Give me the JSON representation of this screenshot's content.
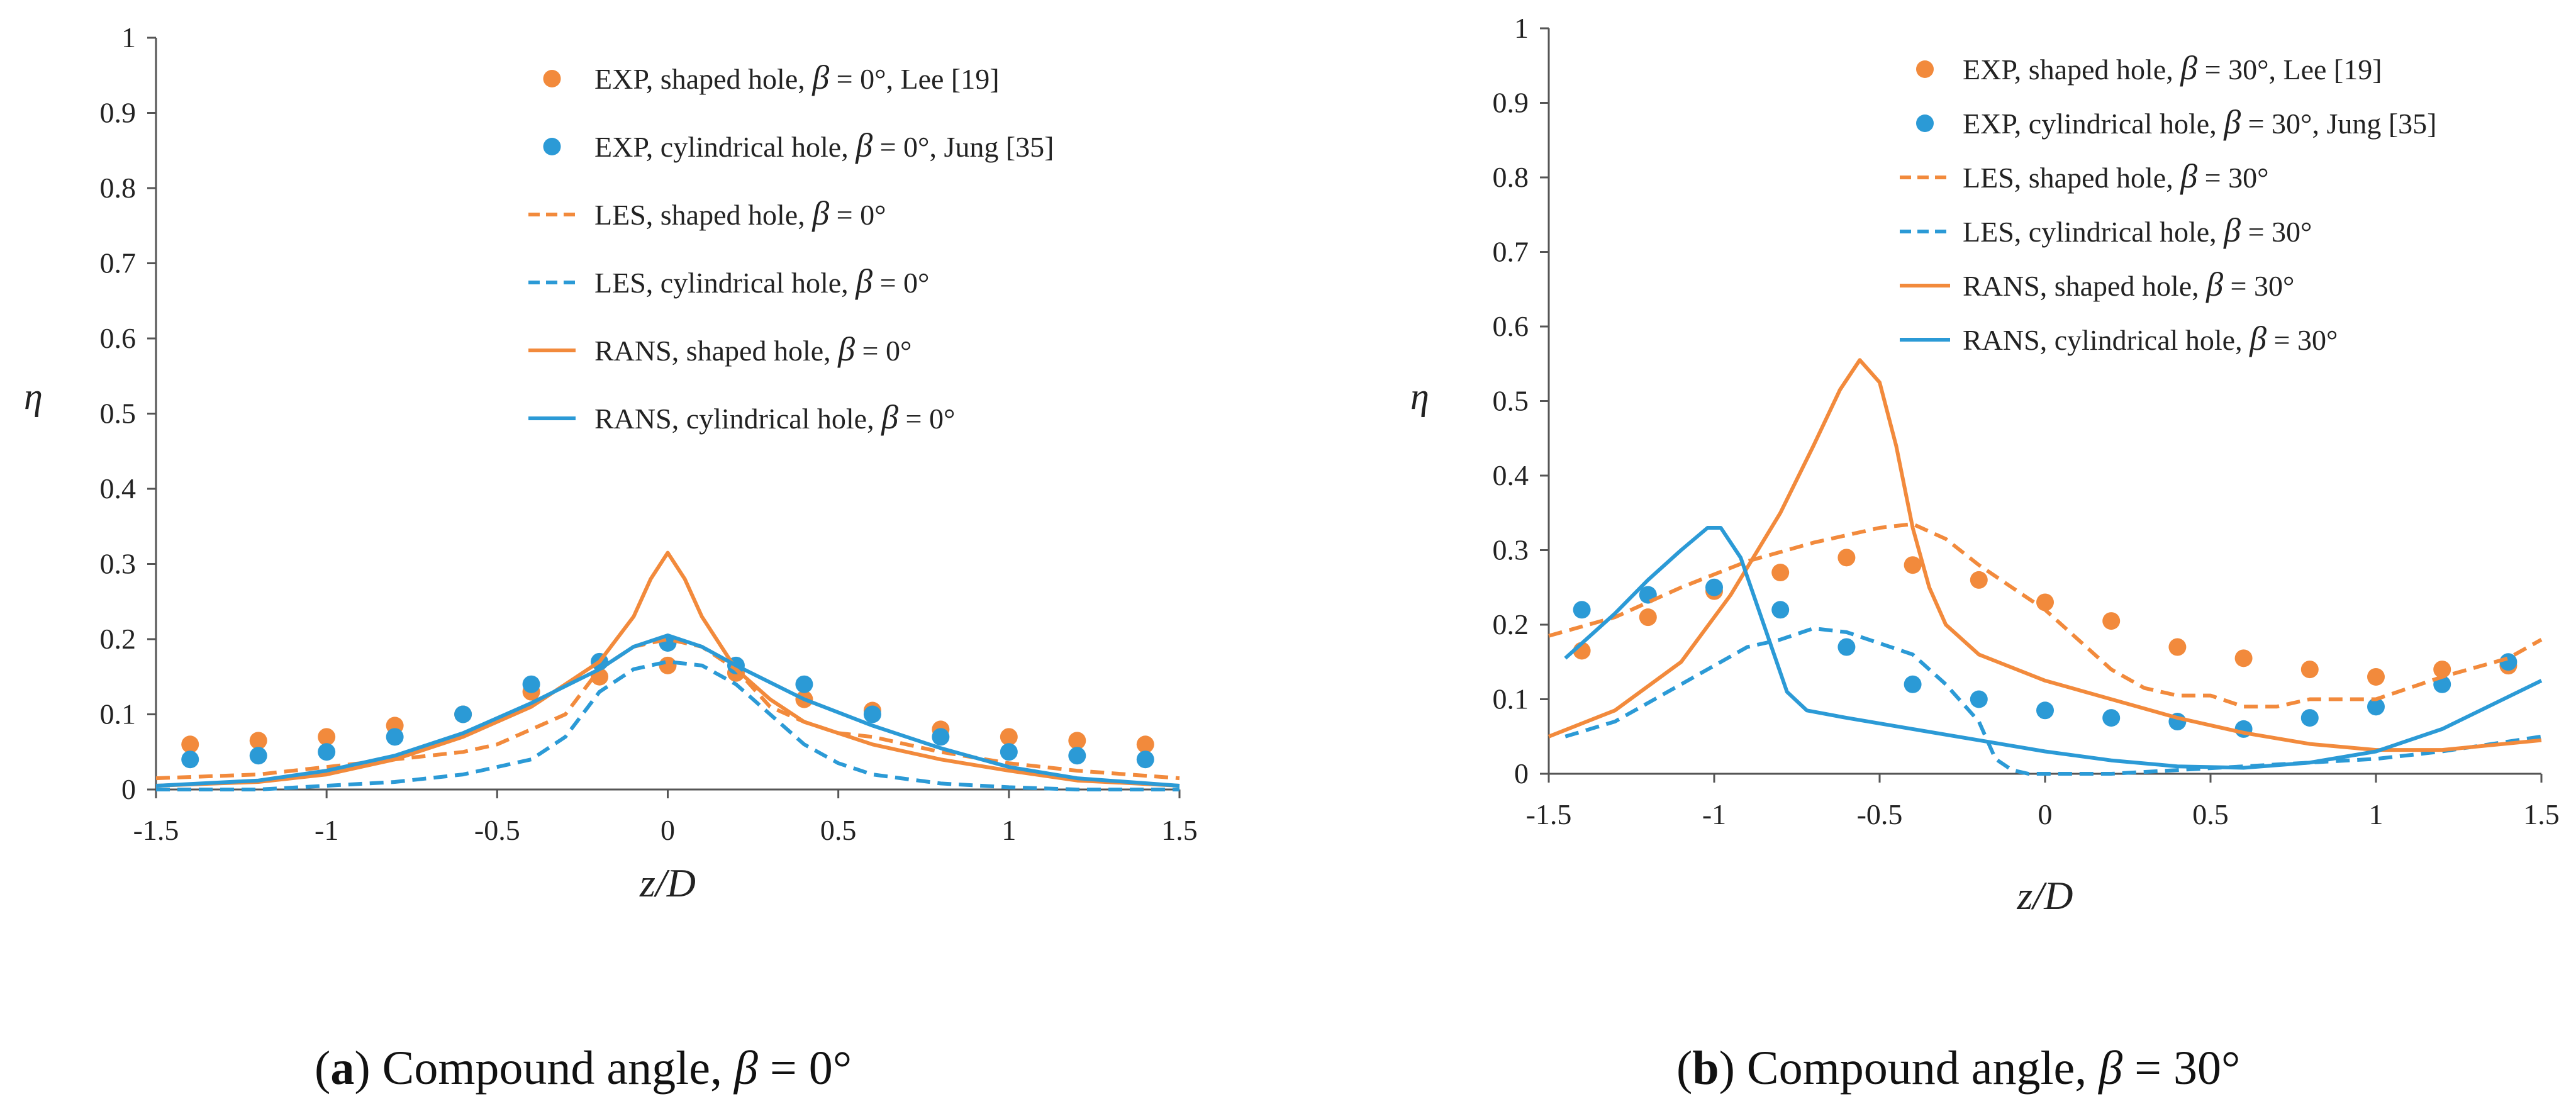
{
  "captions": [
    {
      "letter": "a",
      "text": "Compound angle, ",
      "sym": "β",
      "value": " = 0°"
    },
    {
      "letter": "b",
      "text": "Compound angle, ",
      "sym": "β",
      "value": " = 30°"
    }
  ],
  "chart_data": [
    {
      "type": "line",
      "title": "",
      "xlabel": "z/D",
      "ylabel": "η",
      "xlim": [
        -1.5,
        1.5
      ],
      "ylim": [
        0,
        1
      ],
      "xticks": [
        -1.5,
        -1,
        -0.5,
        0,
        0.5,
        1,
        1.5
      ],
      "xtick_labels": [
        "-1.5",
        "-1",
        "-0.5",
        "0",
        "0.5",
        "1",
        "1.5"
      ],
      "yticks": [
        0,
        0.1,
        0.2,
        0.3,
        0.4,
        0.5,
        0.6,
        0.7,
        0.8,
        0.9,
        1
      ],
      "ytick_labels": [
        "0",
        "0.1",
        "0.2",
        "0.3",
        "0.4",
        "0.5",
        "0.6",
        "0.7",
        "0.8",
        "0.9",
        "1"
      ],
      "legend_position": "top-right",
      "series": [
        {
          "name": "EXP, shaped hole, β = 0°, Lee [19]",
          "label_pre": "EXP, shaped hole, ",
          "label_post": " = 0°, Lee [19]",
          "style": "marker",
          "color": "#F28A3C",
          "x": [
            -1.4,
            -1.2,
            -1.0,
            -0.8,
            -0.6,
            -0.4,
            -0.2,
            0,
            0.2,
            0.4,
            0.6,
            0.8,
            1.0,
            1.2,
            1.4
          ],
          "y": [
            0.06,
            0.065,
            0.07,
            0.085,
            0.1,
            0.13,
            0.15,
            0.165,
            0.155,
            0.12,
            0.105,
            0.08,
            0.07,
            0.065,
            0.06
          ]
        },
        {
          "name": "EXP, cylindrical hole, β = 0°, Jung [35]",
          "label_pre": "EXP, cylindrical hole, ",
          "label_post": " = 0°, Jung [35]",
          "style": "marker",
          "color": "#2B9AD6",
          "x": [
            -1.4,
            -1.2,
            -1.0,
            -0.8,
            -0.6,
            -0.4,
            -0.2,
            0,
            0.2,
            0.4,
            0.6,
            0.8,
            1.0,
            1.2,
            1.4
          ],
          "y": [
            0.04,
            0.045,
            0.05,
            0.07,
            0.1,
            0.14,
            0.17,
            0.195,
            0.165,
            0.14,
            0.1,
            0.07,
            0.05,
            0.045,
            0.04
          ]
        },
        {
          "name": "LES, shaped hole, β = 0°",
          "label_pre": "LES, shaped hole, ",
          "label_post": " = 0°",
          "style": "dashed",
          "color": "#F28A3C",
          "x": [
            -1.5,
            -1.2,
            -1.0,
            -0.8,
            -0.6,
            -0.5,
            -0.4,
            -0.3,
            -0.2,
            -0.1,
            0,
            0.1,
            0.2,
            0.3,
            0.4,
            0.5,
            0.6,
            0.8,
            1.0,
            1.2,
            1.5
          ],
          "y": [
            0.015,
            0.02,
            0.03,
            0.04,
            0.05,
            0.06,
            0.08,
            0.1,
            0.16,
            0.19,
            0.2,
            0.19,
            0.16,
            0.11,
            0.09,
            0.075,
            0.07,
            0.05,
            0.035,
            0.025,
            0.015
          ]
        },
        {
          "name": "LES, cylindrical hole, β = 0°",
          "label_pre": "LES, cylindrical hole, ",
          "label_post": " = 0°",
          "style": "dashed",
          "color": "#2B9AD6",
          "x": [
            -1.5,
            -1.2,
            -1.0,
            -0.8,
            -0.6,
            -0.4,
            -0.3,
            -0.2,
            -0.1,
            0,
            0.1,
            0.2,
            0.3,
            0.4,
            0.5,
            0.6,
            0.8,
            1.0,
            1.2,
            1.5
          ],
          "y": [
            0.0,
            0.0,
            0.005,
            0.01,
            0.02,
            0.04,
            0.07,
            0.13,
            0.16,
            0.17,
            0.165,
            0.14,
            0.1,
            0.06,
            0.035,
            0.02,
            0.008,
            0.003,
            0.0,
            0.0
          ]
        },
        {
          "name": "RANS, shaped hole, β = 0°",
          "label_pre": "RANS, shaped hole, ",
          "label_post": " = 0°",
          "style": "solid",
          "color": "#F28A3C",
          "x": [
            -1.5,
            -1.2,
            -1.0,
            -0.8,
            -0.6,
            -0.4,
            -0.3,
            -0.2,
            -0.1,
            -0.05,
            0,
            0.05,
            0.1,
            0.2,
            0.3,
            0.4,
            0.6,
            0.8,
            1.0,
            1.2,
            1.5
          ],
          "y": [
            0.005,
            0.01,
            0.02,
            0.04,
            0.07,
            0.11,
            0.14,
            0.17,
            0.23,
            0.28,
            0.315,
            0.28,
            0.23,
            0.16,
            0.12,
            0.09,
            0.06,
            0.04,
            0.025,
            0.012,
            0.005
          ]
        },
        {
          "name": "RANS, cylindrical hole, β = 0°",
          "label_pre": "RANS, cylindrical hole, ",
          "label_post": " = 0°",
          "style": "solid",
          "color": "#2B9AD6",
          "x": [
            -1.5,
            -1.2,
            -1.0,
            -0.8,
            -0.6,
            -0.4,
            -0.2,
            -0.1,
            0,
            0.1,
            0.2,
            0.4,
            0.6,
            0.8,
            1.0,
            1.2,
            1.5
          ],
          "y": [
            0.005,
            0.012,
            0.025,
            0.045,
            0.075,
            0.115,
            0.16,
            0.19,
            0.205,
            0.19,
            0.165,
            0.12,
            0.085,
            0.055,
            0.03,
            0.015,
            0.005
          ]
        }
      ]
    },
    {
      "type": "line",
      "title": "",
      "xlabel": "z/D",
      "ylabel": "η",
      "xlim": [
        -1.5,
        1.5
      ],
      "ylim": [
        0,
        1
      ],
      "xticks": [
        -1.5,
        -1,
        -0.5,
        0,
        0.5,
        1,
        1.5
      ],
      "xtick_labels": [
        "-1.5",
        "-1",
        "-0.5",
        "0",
        "0.5",
        "1",
        "1.5"
      ],
      "yticks": [
        0,
        0.1,
        0.2,
        0.3,
        0.4,
        0.5,
        0.6,
        0.7,
        0.8,
        0.9,
        1
      ],
      "ytick_labels": [
        "0",
        "0.1",
        "0.2",
        "0.3",
        "0.4",
        "0.5",
        "0.6",
        "0.7",
        "0.8",
        "0.9",
        "1"
      ],
      "legend_position": "top-right",
      "series": [
        {
          "name": "EXP, shaped hole, β = 30°, Lee [19]",
          "label_pre": "EXP, shaped hole, ",
          "label_post": " = 30°, Lee [19]",
          "style": "marker",
          "color": "#F28A3C",
          "x": [
            -1.4,
            -1.2,
            -1.0,
            -0.8,
            -0.6,
            -0.4,
            -0.2,
            0,
            0.2,
            0.4,
            0.6,
            0.8,
            1.0,
            1.2,
            1.4
          ],
          "y": [
            0.165,
            0.21,
            0.245,
            0.27,
            0.29,
            0.28,
            0.26,
            0.23,
            0.205,
            0.17,
            0.155,
            0.14,
            0.13,
            0.14,
            0.145
          ]
        },
        {
          "name": "EXP, cylindrical hole, β = 30°, Jung [35]",
          "label_pre": "EXP, cylindrical hole, ",
          "label_post": " = 30°, Jung [35]",
          "style": "marker",
          "color": "#2B9AD6",
          "x": [
            -1.4,
            -1.2,
            -1.0,
            -0.8,
            -0.6,
            -0.4,
            -0.2,
            0,
            0.2,
            0.4,
            0.6,
            0.8,
            1.0,
            1.2,
            1.4
          ],
          "y": [
            0.22,
            0.24,
            0.25,
            0.22,
            0.17,
            0.12,
            0.1,
            0.085,
            0.075,
            0.07,
            0.06,
            0.075,
            0.09,
            0.12,
            0.15
          ]
        },
        {
          "name": "LES, shaped hole, β = 30°",
          "label_pre": "LES, shaped hole, ",
          "label_post": " = 30°",
          "style": "dashed",
          "color": "#F28A3C",
          "x": [
            -1.5,
            -1.3,
            -1.1,
            -0.9,
            -0.7,
            -0.5,
            -0.4,
            -0.3,
            -0.2,
            -0.1,
            0,
            0.1,
            0.2,
            0.3,
            0.4,
            0.5,
            0.6,
            0.7,
            0.8,
            1.0,
            1.2,
            1.4,
            1.5
          ],
          "y": [
            0.185,
            0.21,
            0.25,
            0.285,
            0.31,
            0.33,
            0.335,
            0.315,
            0.28,
            0.25,
            0.22,
            0.18,
            0.14,
            0.115,
            0.105,
            0.105,
            0.09,
            0.09,
            0.1,
            0.1,
            0.13,
            0.155,
            0.18
          ]
        },
        {
          "name": "LES, cylindrical hole, β = 30°",
          "label_pre": "LES, cylindrical hole, ",
          "label_post": " = 30°",
          "style": "dashed",
          "color": "#2B9AD6",
          "x": [
            -1.45,
            -1.3,
            -1.1,
            -0.9,
            -0.8,
            -0.7,
            -0.6,
            -0.5,
            -0.4,
            -0.3,
            -0.2,
            -0.15,
            -0.1,
            -0.05,
            0,
            0.2,
            0.4,
            0.6,
            0.8,
            1.0,
            1.2,
            1.5
          ],
          "y": [
            0.05,
            0.07,
            0.12,
            0.17,
            0.18,
            0.195,
            0.19,
            0.175,
            0.16,
            0.12,
            0.07,
            0.02,
            0.005,
            0.0,
            0.0,
            0.0,
            0.005,
            0.01,
            0.015,
            0.02,
            0.03,
            0.05
          ]
        },
        {
          "name": "RANS, shaped hole, β = 30°",
          "label_pre": "RANS, shaped hole, ",
          "label_post": " = 30°",
          "style": "solid",
          "color": "#F28A3C",
          "x": [
            -1.5,
            -1.3,
            -1.1,
            -0.95,
            -0.8,
            -0.7,
            -0.62,
            -0.56,
            -0.5,
            -0.45,
            -0.4,
            -0.35,
            -0.3,
            -0.2,
            0,
            0.2,
            0.4,
            0.6,
            0.8,
            1.0,
            1.2,
            1.5
          ],
          "y": [
            0.05,
            0.085,
            0.15,
            0.24,
            0.35,
            0.44,
            0.515,
            0.555,
            0.525,
            0.44,
            0.33,
            0.25,
            0.2,
            0.16,
            0.125,
            0.1,
            0.075,
            0.055,
            0.04,
            0.032,
            0.032,
            0.045
          ]
        },
        {
          "name": "RANS, cylindrical hole, β = 30°",
          "label_pre": "RANS, cylindrical hole, ",
          "label_post": " = 30°",
          "style": "solid",
          "color": "#2B9AD6",
          "x": [
            -1.45,
            -1.3,
            -1.2,
            -1.1,
            -1.02,
            -0.98,
            -0.92,
            -0.85,
            -0.78,
            -0.72,
            -0.6,
            -0.4,
            -0.2,
            0,
            0.2,
            0.4,
            0.6,
            0.8,
            1.0,
            1.2,
            1.5
          ],
          "y": [
            0.155,
            0.215,
            0.26,
            0.3,
            0.33,
            0.33,
            0.29,
            0.2,
            0.11,
            0.085,
            0.075,
            0.06,
            0.045,
            0.03,
            0.018,
            0.01,
            0.008,
            0.015,
            0.03,
            0.06,
            0.125
          ]
        }
      ]
    }
  ]
}
